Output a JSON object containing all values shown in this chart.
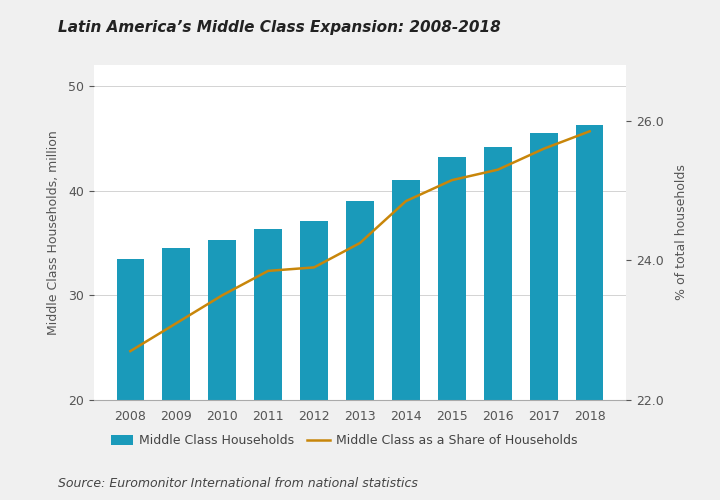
{
  "title": "Latin America’s Middle Class Expansion: 2008-2018",
  "source": "Source: Euromonitor International from national statistics",
  "years": [
    2008,
    2009,
    2010,
    2011,
    2012,
    2013,
    2014,
    2015,
    2016,
    2017,
    2018
  ],
  "bar_values": [
    33.5,
    34.5,
    35.3,
    36.3,
    37.1,
    39.0,
    41.0,
    43.2,
    44.2,
    45.5,
    46.3
  ],
  "line_values": [
    22.7,
    23.1,
    23.5,
    23.85,
    23.9,
    24.25,
    24.85,
    25.15,
    25.3,
    25.6,
    25.85
  ],
  "bar_color": "#1a9aba",
  "line_color": "#c8860a",
  "ylim_left": [
    20,
    52
  ],
  "ylim_right": [
    22.0,
    26.8
  ],
  "yticks_left": [
    20,
    30,
    40,
    50
  ],
  "yticks_right_vals": [
    22.0,
    24.0,
    26.0
  ],
  "yticks_right_labels": [
    "22.0",
    "24.0",
    "26.0"
  ],
  "ylabel_left": "Middle Class Households, million",
  "ylabel_right": "% of total households",
  "legend_bar": "Middle Class Households",
  "legend_line": "Middle Class as a Share of Households",
  "bg_color": "#f0f0f0",
  "plot_bg_color": "#ffffff"
}
